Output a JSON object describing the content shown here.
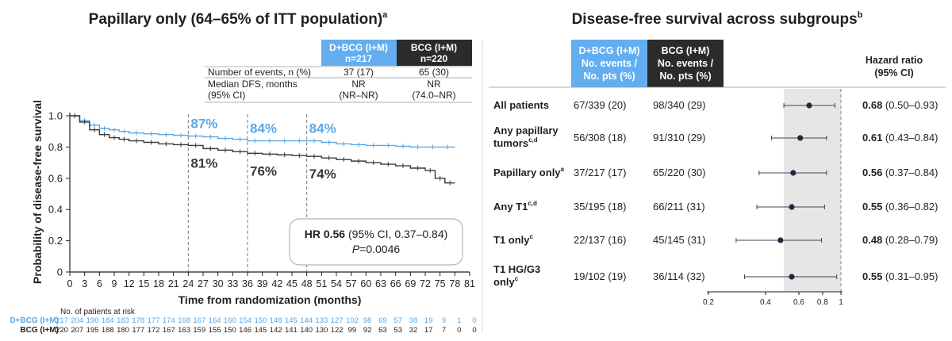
{
  "colors": {
    "dbcg": "#5aa7e6",
    "bcg": "#3a3a3a",
    "header_blue": "#62aef0",
    "header_dark": "#2b2b2b",
    "shade": "#e6e6e6",
    "text": "#231f20"
  },
  "chart_data": [
    {
      "type": "line",
      "title": "Papillary only (64–65% of ITT population)",
      "title_sup": "a",
      "xlabel": "Time from randomization (months)",
      "ylabel": "Probability of disease-free survival",
      "xlim": [
        0,
        81
      ],
      "ylim": [
        0,
        1.0
      ],
      "x_ticks": [
        0,
        3,
        6,
        9,
        12,
        15,
        18,
        21,
        24,
        27,
        30,
        33,
        36,
        39,
        42,
        45,
        48,
        51,
        54,
        57,
        60,
        63,
        66,
        69,
        72,
        75,
        78,
        81
      ],
      "y_ticks": [
        "0",
        "0.2",
        "0.4",
        "0.6",
        "0.8",
        "1.0"
      ],
      "y_tick_values": [
        0,
        0.2,
        0.4,
        0.6,
        0.8,
        1.0
      ],
      "landmarks": [
        24,
        36,
        48
      ],
      "series": [
        {
          "name": "D+BCG (I+M)",
          "color": "#5aa7e6",
          "x": [
            0,
            2,
            4,
            6,
            8,
            10,
            12,
            15,
            18,
            21,
            24,
            27,
            30,
            33,
            36,
            39,
            42,
            45,
            48,
            51,
            54,
            57,
            60,
            63,
            66,
            69,
            72,
            75,
            78
          ],
          "y": [
            1.0,
            0.97,
            0.94,
            0.92,
            0.91,
            0.9,
            0.89,
            0.885,
            0.88,
            0.875,
            0.87,
            0.865,
            0.855,
            0.85,
            0.84,
            0.84,
            0.84,
            0.84,
            0.84,
            0.83,
            0.82,
            0.815,
            0.81,
            0.81,
            0.805,
            0.8,
            0.8,
            0.8,
            0.8
          ],
          "landmark_labels": [
            "87%",
            "84%",
            "84%"
          ]
        },
        {
          "name": "BCG (I+M)",
          "color": "#3a3a3a",
          "x": [
            0,
            2,
            4,
            6,
            8,
            10,
            12,
            15,
            18,
            21,
            24,
            27,
            30,
            33,
            36,
            39,
            42,
            45,
            48,
            51,
            54,
            57,
            60,
            63,
            66,
            69,
            72,
            74,
            76,
            78
          ],
          "y": [
            1.0,
            0.96,
            0.91,
            0.88,
            0.86,
            0.85,
            0.84,
            0.83,
            0.82,
            0.815,
            0.81,
            0.79,
            0.78,
            0.77,
            0.76,
            0.755,
            0.75,
            0.745,
            0.74,
            0.73,
            0.72,
            0.71,
            0.7,
            0.69,
            0.68,
            0.665,
            0.65,
            0.6,
            0.57,
            0.57
          ],
          "landmark_labels": [
            "81%",
            "76%",
            "74%"
          ]
        }
      ],
      "hr_box": {
        "hr_label": "HR 0.56",
        "ci_text": " (95% CI, 0.37–0.84)",
        "p_label": "P",
        "p_value": "=0.0046"
      },
      "risk_table": {
        "title": "No. of patients at risk",
        "rows": [
          {
            "name": "D+BCG (I+M)",
            "values": [
              "217",
              "204",
              "190",
              "184",
              "183",
              "178",
              "177",
              "174",
              "168",
              "167",
              "164",
              "160",
              "154",
              "150",
              "148",
              "145",
              "144",
              "133",
              "127",
              "102",
              "98",
              "69",
              "57",
              "38",
              "19",
              "9",
              "1",
              "0"
            ]
          },
          {
            "name": "BCG (I+M)",
            "values": [
              "220",
              "207",
              "195",
              "188",
              "180",
              "177",
              "172",
              "167",
              "163",
              "159",
              "155",
              "150",
              "146",
              "145",
              "142",
              "141",
              "140",
              "130",
              "122",
              "99",
              "92",
              "63",
              "53",
              "32",
              "17",
              "7",
              "0",
              "0"
            ]
          }
        ]
      },
      "summary_table": {
        "col_headers": [
          {
            "line1": "D+BCG (I+M)",
            "line2": "n=217"
          },
          {
            "line1": "BCG (I+M)",
            "line2": "n=220"
          }
        ],
        "rows": [
          {
            "label": "Number of events, n (%)",
            "label2": "",
            "values": [
              "37 (17)",
              "65 (30)"
            ],
            "values2": [
              "",
              ""
            ]
          },
          {
            "label": "Median DFS, months",
            "label2": "(95% CI)",
            "values": [
              "NR",
              "NR"
            ],
            "values2": [
              "(NR–NR)",
              "(74.0–NR)"
            ]
          }
        ]
      }
    },
    {
      "type": "forest",
      "title": "Disease-free survival across subgroups",
      "title_sup": "b",
      "col_headers": {
        "dbcg": [
          "D+BCG (I+M)",
          "No. events /",
          "No. pts (%)"
        ],
        "bcg": [
          "BCG (I+M)",
          "No. events /",
          "No. pts (%)"
        ],
        "hr": [
          "Hazard ratio",
          "(95% CI)"
        ]
      },
      "x_scale": "log",
      "xlim": [
        0.2,
        1
      ],
      "x_ticks": [
        "0.2",
        "0.4",
        "0.6",
        "0.8",
        "1"
      ],
      "x_tick_values": [
        0.2,
        0.4,
        0.6,
        0.8,
        1
      ],
      "reference_line": 1,
      "shaded_range": [
        0.5,
        1
      ],
      "subgroups": [
        {
          "label": [
            "All patients"
          ],
          "sup": "",
          "dbcg": "67/339 (20)",
          "bcg": "98/340 (29)",
          "hr": 0.68,
          "lo": 0.5,
          "hi": 0.93,
          "hr_text": "0.68",
          "ci_text": " (0.50–0.93)"
        },
        {
          "label": [
            "Any papillary",
            "tumors"
          ],
          "sup": "c,d",
          "dbcg": "56/308 (18)",
          "bcg": "91/310 (29)",
          "hr": 0.61,
          "lo": 0.43,
          "hi": 0.84,
          "hr_text": "0.61",
          "ci_text": " (0.43–0.84)"
        },
        {
          "label": [
            "Papillary only"
          ],
          "sup": "a",
          "dbcg": "37/217 (17)",
          "bcg": "65/220 (30)",
          "hr": 0.56,
          "lo": 0.37,
          "hi": 0.84,
          "hr_text": "0.56",
          "ci_text": " (0.37–0.84)"
        },
        {
          "label": [
            "Any T1"
          ],
          "sup": "c,d",
          "dbcg": "35/195 (18)",
          "bcg": "66/211 (31)",
          "hr": 0.55,
          "lo": 0.36,
          "hi": 0.82,
          "hr_text": "0.55",
          "ci_text": " (0.36–0.82)"
        },
        {
          "label": [
            "T1 only"
          ],
          "sup": "c",
          "dbcg": "22/137 (16)",
          "bcg": "45/145 (31)",
          "hr": 0.48,
          "lo": 0.28,
          "hi": 0.79,
          "hr_text": "0.48",
          "ci_text": " (0.28–0.79)"
        },
        {
          "label": [
            "T1 HG/G3",
            "only"
          ],
          "sup": "c",
          "dbcg": "19/102 (19)",
          "bcg": "36/114 (32)",
          "hr": 0.55,
          "lo": 0.31,
          "hi": 0.95,
          "hr_text": "0.55",
          "ci_text": " (0.31–0.95)"
        }
      ]
    }
  ]
}
